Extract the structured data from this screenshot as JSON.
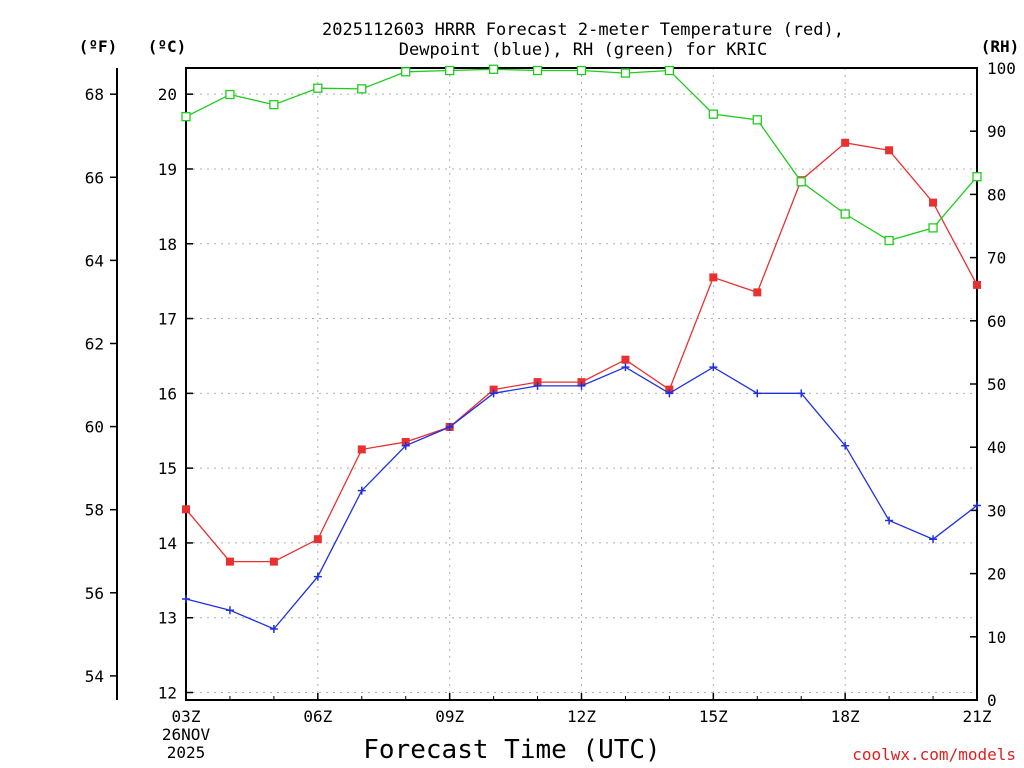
{
  "chart_data": {
    "type": "line",
    "title_line1": "2025112603 HRRR Forecast 2-meter Temperature (red),",
    "title_line2": "Dewpoint (blue), RH (green) for KRIC",
    "xlabel": "Forecast Time (UTC)",
    "credit": "coolwx.com/models",
    "unit_f": "(ºF)",
    "unit_c": "(ºC)",
    "unit_rh": "(RH)",
    "x_ticks": [
      "03Z",
      "06Z",
      "09Z",
      "12Z",
      "15Z",
      "18Z",
      "21Z"
    ],
    "x_date_line2": "26NOV",
    "x_date_line3": "2025",
    "x_hours": [
      3,
      4,
      5,
      6,
      7,
      8,
      9,
      10,
      11,
      12,
      13,
      14,
      15,
      16,
      17,
      18,
      19,
      20,
      21
    ],
    "xlim": [
      3,
      21
    ],
    "celsius_ticks": [
      "12",
      "13",
      "14",
      "15",
      "16",
      "17",
      "18",
      "19",
      "20"
    ],
    "celsius_lim": [
      11.9,
      20.35
    ],
    "fahrenheit_ticks": [
      "54",
      "56",
      "58",
      "60",
      "62",
      "64",
      "66",
      "68"
    ],
    "rh_ticks": [
      "0",
      "10",
      "20",
      "30",
      "40",
      "50",
      "60",
      "70",
      "80",
      "90",
      "100"
    ],
    "rh_lim": [
      0,
      100
    ],
    "series": [
      {
        "name": "2-meter Temperature",
        "color": "#e83030",
        "marker": "square-filled",
        "axis": "celsius",
        "values": [
          14.45,
          13.75,
          13.75,
          14.05,
          15.25,
          15.35,
          15.55,
          16.05,
          16.15,
          16.15,
          16.45,
          16.05,
          17.55,
          17.35,
          18.85,
          19.35,
          19.25,
          18.55,
          17.45
        ]
      },
      {
        "name": "Dewpoint",
        "color": "#2030e0",
        "marker": "plus",
        "axis": "celsius",
        "values": [
          13.25,
          13.1,
          12.85,
          13.55,
          14.7,
          15.3,
          15.55,
          16.0,
          16.1,
          16.1,
          16.35,
          16.0,
          16.35,
          16.0,
          16.0,
          15.3,
          14.3,
          14.05,
          14.5
        ]
      },
      {
        "name": "RH",
        "color": "#20cc20",
        "marker": "square-open",
        "axis": "rh",
        "values": [
          92.3,
          95.8,
          94.2,
          96.8,
          96.7,
          99.4,
          99.6,
          99.8,
          99.6,
          99.6,
          99.2,
          99.6,
          92.7,
          91.8,
          82.0,
          76.9,
          72.7,
          74.7,
          82.8
        ]
      }
    ]
  }
}
